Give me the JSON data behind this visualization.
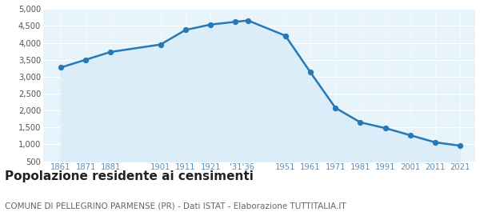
{
  "years": [
    1861,
    1871,
    1881,
    1901,
    1911,
    1921,
    1931,
    1936,
    1951,
    1961,
    1971,
    1981,
    1991,
    2001,
    2011,
    2021
  ],
  "population": [
    3270,
    3500,
    3730,
    3950,
    4380,
    4540,
    4620,
    4660,
    4210,
    3130,
    2080,
    1650,
    1480,
    1270,
    1060,
    960
  ],
  "x_tick_labels": [
    "1861",
    "1871",
    "1881",
    "1901",
    "1911",
    "1921",
    "'31'36",
    "1951",
    "1961",
    "1971",
    "1981",
    "1991",
    "2001",
    "2011",
    "2021"
  ],
  "x_tick_positions": [
    1861,
    1871,
    1881,
    1901,
    1911,
    1921,
    1933.5,
    1951,
    1961,
    1971,
    1981,
    1991,
    2001,
    2011,
    2021
  ],
  "y_ticks": [
    500,
    1000,
    1500,
    2000,
    2500,
    3000,
    3500,
    4000,
    4500,
    5000
  ],
  "ylim": [
    500,
    5000
  ],
  "xlim_left": 1854,
  "xlim_right": 2027,
  "line_color": "#2878b5",
  "fill_color": "#daedf8",
  "marker_color": "#2878b5",
  "bg_color": "#e8f4fb",
  "grid_color": "#ffffff",
  "x_label_color": "#5b8db8",
  "y_label_color": "#555555",
  "title": "Popolazione residente ai censimenti",
  "subtitle": "COMUNE DI PELLEGRINO PARMENSE (PR) - Dati ISTAT - Elaborazione TUTTITALIA.IT",
  "title_fontsize": 11,
  "subtitle_fontsize": 7.5,
  "tick_fontsize": 7.2,
  "line_width": 1.8,
  "marker_size": 18
}
